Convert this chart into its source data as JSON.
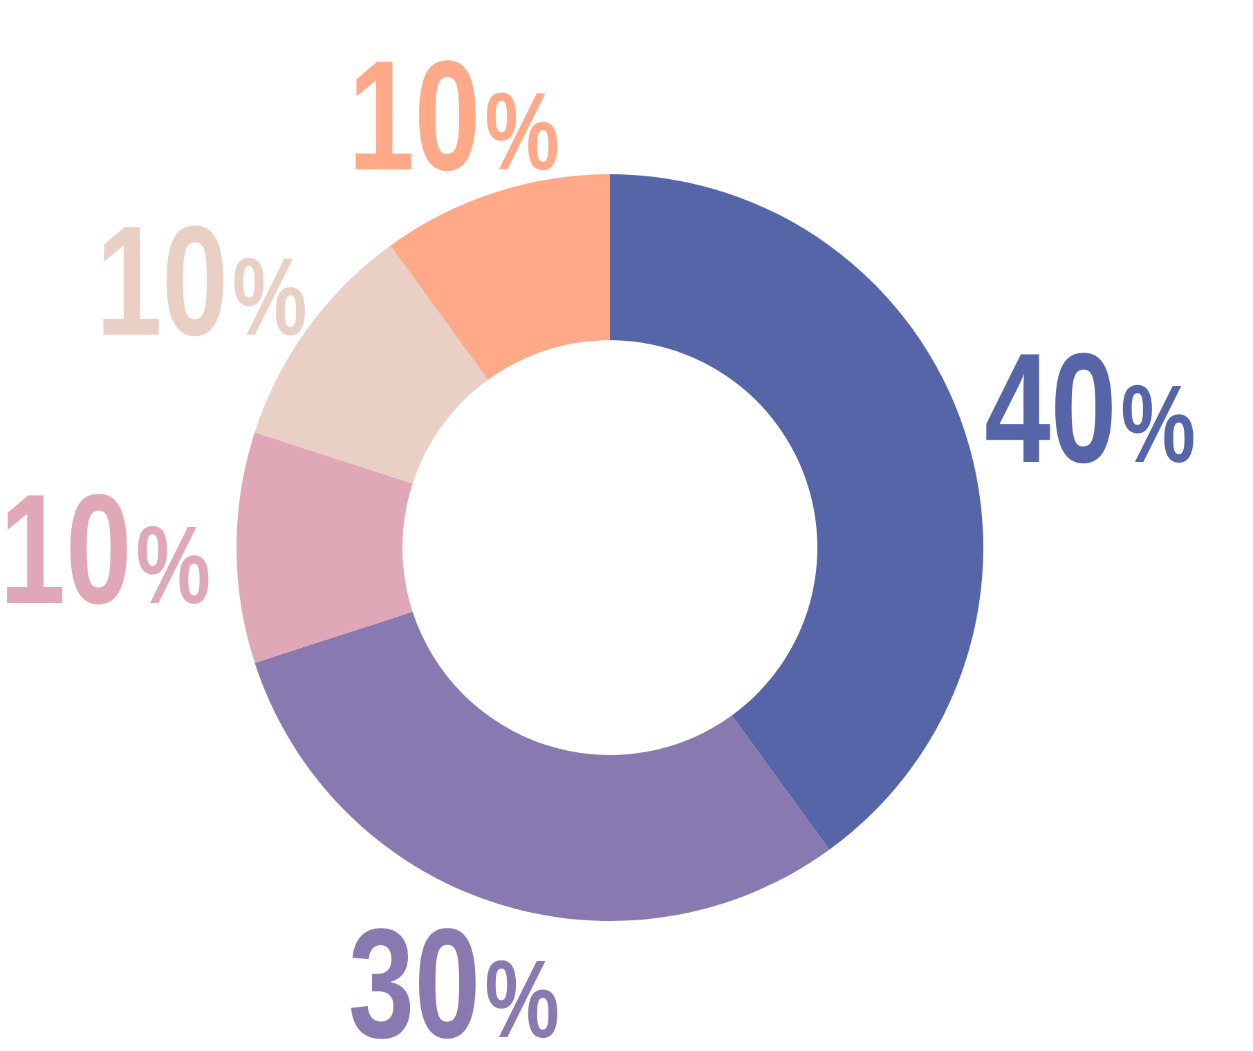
{
  "chart_data": {
    "type": "donut",
    "categories": [
      null,
      null,
      null,
      null,
      null
    ],
    "values": [
      40,
      30,
      10,
      10,
      10
    ],
    "colors": [
      "#5664a8",
      "#8879b0",
      "#e0a7b6",
      "#e9cfc4",
      "#ffa988"
    ],
    "value_labels": [
      "40%",
      "30%",
      "10%",
      "10%",
      "10%"
    ]
  }
}
